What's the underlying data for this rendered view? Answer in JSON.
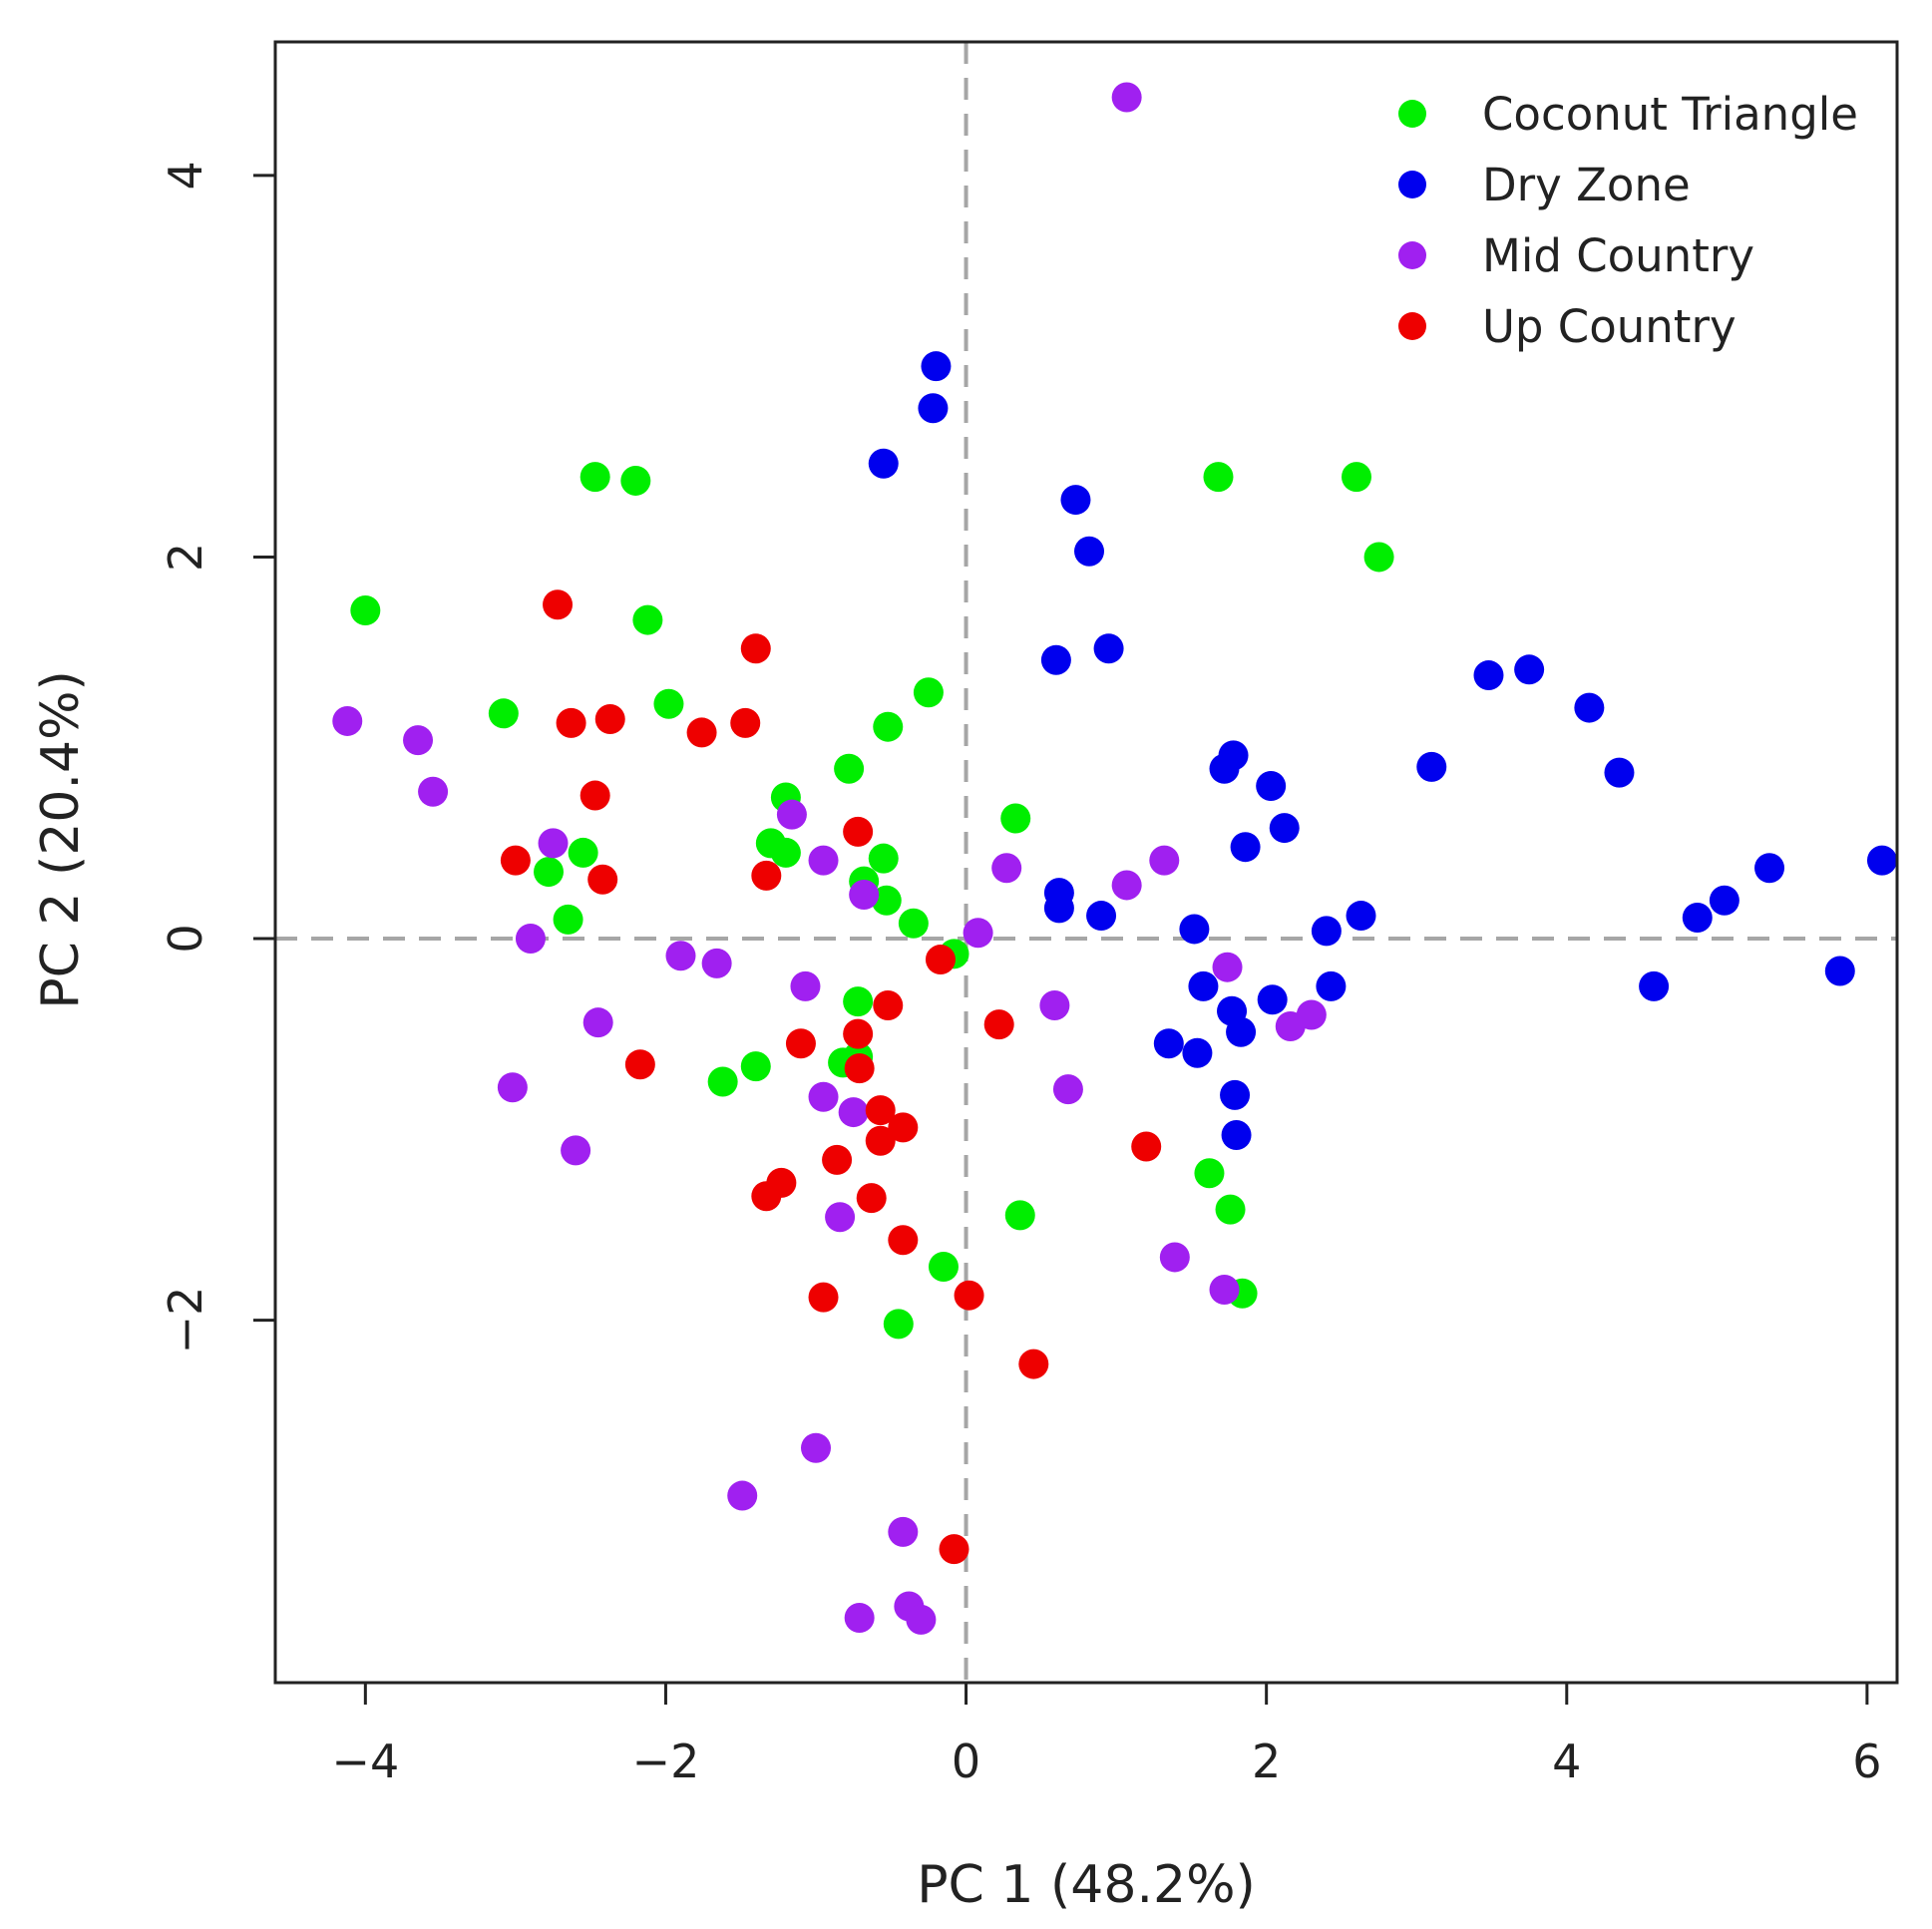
{
  "chart_data": {
    "type": "scatter",
    "title": "",
    "xlabel": "PC 1 (48.2%)",
    "ylabel": "PC 2 (20.4%)",
    "xlim": [
      -4.6,
      6.2
    ],
    "ylim": [
      -3.9,
      4.7
    ],
    "x_ticks": [
      -4,
      -2,
      0,
      2,
      4,
      6
    ],
    "x_tick_labels": [
      "−4",
      "−2",
      "0",
      "2",
      "4",
      "6"
    ],
    "y_ticks": [
      -2,
      0,
      2,
      4
    ],
    "y_tick_labels": [
      "−2",
      "0",
      "2",
      "4"
    ],
    "reference_lines": {
      "x": 0,
      "y": 0,
      "style": "dashed"
    },
    "legend_position": "top-right",
    "series": [
      {
        "name": "Coconut Triangle",
        "color": "#00ee00",
        "points": [
          [
            -4.0,
            1.72
          ],
          [
            -2.47,
            2.42
          ],
          [
            -2.2,
            2.4
          ],
          [
            -2.12,
            1.67
          ],
          [
            -1.98,
            1.23
          ],
          [
            -3.08,
            1.18
          ],
          [
            -0.25,
            1.29
          ],
          [
            -0.52,
            1.11
          ],
          [
            -0.78,
            0.89
          ],
          [
            -1.2,
            0.74
          ],
          [
            -1.3,
            0.5
          ],
          [
            -1.2,
            0.45
          ],
          [
            -0.55,
            0.42
          ],
          [
            -0.68,
            0.3
          ],
          [
            -0.53,
            0.2
          ],
          [
            -0.35,
            0.08
          ],
          [
            -0.08,
            -0.08
          ],
          [
            0.33,
            0.63
          ],
          [
            -2.78,
            0.35
          ],
          [
            -2.55,
            0.45
          ],
          [
            -2.65,
            0.1
          ],
          [
            -0.72,
            -0.33
          ],
          [
            -0.72,
            -0.62
          ],
          [
            -0.82,
            -0.65
          ],
          [
            -1.4,
            -0.67
          ],
          [
            -1.62,
            -0.75
          ],
          [
            0.36,
            -1.45
          ],
          [
            -0.15,
            -1.72
          ],
          [
            -0.45,
            -2.02
          ],
          [
            1.62,
            -1.23
          ],
          [
            1.76,
            -1.42
          ],
          [
            1.84,
            -1.86
          ],
          [
            1.68,
            2.42
          ],
          [
            2.6,
            2.42
          ],
          [
            2.75,
            2.0
          ]
        ]
      },
      {
        "name": "Dry Zone",
        "color": "#0000ee",
        "points": [
          [
            -0.2,
            3.0
          ],
          [
            -0.22,
            2.78
          ],
          [
            -0.55,
            2.49
          ],
          [
            0.73,
            2.3
          ],
          [
            0.82,
            2.03
          ],
          [
            0.95,
            1.52
          ],
          [
            0.6,
            1.46
          ],
          [
            3.48,
            1.38
          ],
          [
            3.75,
            1.41
          ],
          [
            4.15,
            1.21
          ],
          [
            4.35,
            0.87
          ],
          [
            3.1,
            0.9
          ],
          [
            1.78,
            0.96
          ],
          [
            1.72,
            0.89
          ],
          [
            2.03,
            0.8
          ],
          [
            2.12,
            0.58
          ],
          [
            1.86,
            0.48
          ],
          [
            0.62,
            0.24
          ],
          [
            0.62,
            0.16
          ],
          [
            0.9,
            0.12
          ],
          [
            1.52,
            0.05
          ],
          [
            2.4,
            0.04
          ],
          [
            2.63,
            0.12
          ],
          [
            6.1,
            0.41
          ],
          [
            5.35,
            0.37
          ],
          [
            5.05,
            0.2
          ],
          [
            4.87,
            0.11
          ],
          [
            5.82,
            -0.17
          ],
          [
            4.58,
            -0.25
          ],
          [
            1.58,
            -0.25
          ],
          [
            2.43,
            -0.25
          ],
          [
            1.77,
            -0.38
          ],
          [
            2.04,
            -0.32
          ],
          [
            1.83,
            -0.49
          ],
          [
            1.35,
            -0.55
          ],
          [
            1.54,
            -0.6
          ],
          [
            1.79,
            -0.82
          ],
          [
            1.8,
            -1.03
          ]
        ]
      },
      {
        "name": "Mid Country",
        "color": "#a020f0",
        "points": [
          [
            1.07,
            4.41
          ],
          [
            -4.12,
            1.14
          ],
          [
            -3.65,
            1.04
          ],
          [
            -3.55,
            0.77
          ],
          [
            -2.75,
            0.5
          ],
          [
            -1.16,
            0.65
          ],
          [
            -0.95,
            0.41
          ],
          [
            -0.68,
            0.23
          ],
          [
            0.27,
            0.37
          ],
          [
            1.07,
            0.28
          ],
          [
            1.32,
            0.41
          ],
          [
            0.08,
            0.03
          ],
          [
            -2.9,
            0.0
          ],
          [
            -1.9,
            -0.09
          ],
          [
            -1.66,
            -0.13
          ],
          [
            -1.07,
            -0.25
          ],
          [
            -2.45,
            -0.44
          ],
          [
            0.59,
            -0.35
          ],
          [
            1.74,
            -0.15
          ],
          [
            2.16,
            -0.46
          ],
          [
            2.3,
            -0.4
          ],
          [
            -3.02,
            -0.78
          ],
          [
            -0.95,
            -0.83
          ],
          [
            -0.75,
            -0.91
          ],
          [
            0.68,
            -0.79
          ],
          [
            -2.6,
            -1.11
          ],
          [
            -0.84,
            -1.46
          ],
          [
            1.39,
            -1.67
          ],
          [
            1.72,
            -1.84
          ],
          [
            -1.0,
            -2.67
          ],
          [
            -1.49,
            -2.92
          ],
          [
            -0.42,
            -3.11
          ],
          [
            -0.71,
            -3.56
          ],
          [
            -0.38,
            -3.5
          ],
          [
            -0.3,
            -3.57
          ]
        ]
      },
      {
        "name": "Up Country",
        "color": "#ee0000",
        "points": [
          [
            -2.72,
            1.75
          ],
          [
            -1.4,
            1.52
          ],
          [
            -2.63,
            1.13
          ],
          [
            -2.37,
            1.15
          ],
          [
            -1.76,
            1.08
          ],
          [
            -1.47,
            1.13
          ],
          [
            -2.47,
            0.75
          ],
          [
            -3.0,
            0.41
          ],
          [
            -2.42,
            0.31
          ],
          [
            -1.33,
            0.33
          ],
          [
            -0.72,
            0.56
          ],
          [
            -0.17,
            -0.11
          ],
          [
            0.22,
            -0.45
          ],
          [
            -0.52,
            -0.35
          ],
          [
            -0.72,
            -0.5
          ],
          [
            -1.1,
            -0.55
          ],
          [
            -0.71,
            -0.68
          ],
          [
            -2.17,
            -0.66
          ],
          [
            -0.57,
            -0.9
          ],
          [
            -0.42,
            -0.99
          ],
          [
            -0.57,
            -1.06
          ],
          [
            -0.86,
            -1.16
          ],
          [
            -1.23,
            -1.28
          ],
          [
            -1.33,
            -1.35
          ],
          [
            -0.63,
            -1.36
          ],
          [
            1.2,
            -1.09
          ],
          [
            -0.42,
            -1.58
          ],
          [
            -0.95,
            -1.88
          ],
          [
            0.02,
            -1.87
          ],
          [
            0.45,
            -2.23
          ],
          [
            -0.08,
            -3.2
          ]
        ]
      }
    ]
  }
}
